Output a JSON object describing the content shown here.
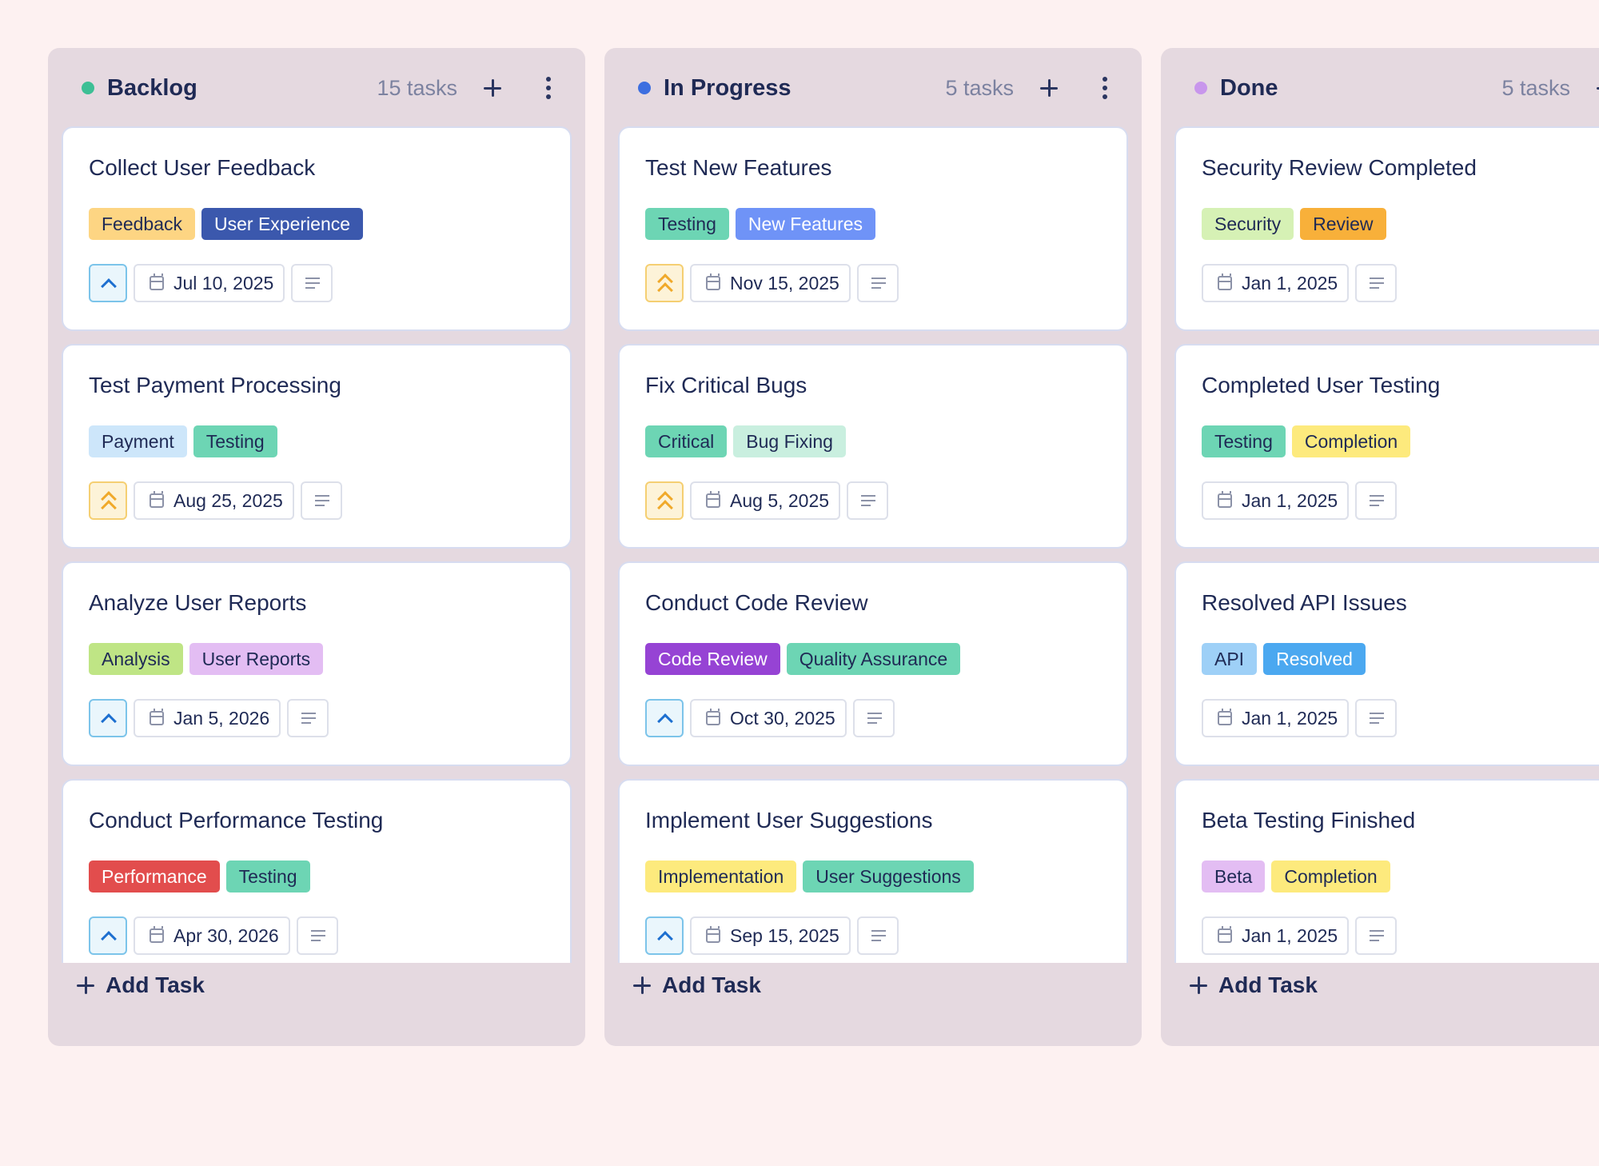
{
  "columns": [
    {
      "name": "Backlog",
      "count": "15 tasks",
      "dot_color": "#3dbf95",
      "add_task_label": "Add Task",
      "cards": [
        {
          "title": "Collect User Feedback",
          "priority": "normal",
          "tags": [
            {
              "label": "Feedback",
              "bg": "#fdd583",
              "fg": "#1f2a55"
            },
            {
              "label": "User Experience",
              "bg": "#3b58ad",
              "fg": "#ffffff"
            }
          ],
          "date": "Jul 10, 2025"
        },
        {
          "title": "Test Payment Processing",
          "priority": "high",
          "tags": [
            {
              "label": "Payment",
              "bg": "#cde6fa",
              "fg": "#1f2a55"
            },
            {
              "label": "Testing",
              "bg": "#6dd5b4",
              "fg": "#1f2a55"
            }
          ],
          "date": "Aug 25, 2025"
        },
        {
          "title": "Analyze User Reports",
          "priority": "normal",
          "tags": [
            {
              "label": "Analysis",
              "bg": "#bfe585",
              "fg": "#1f2a55"
            },
            {
              "label": "User Reports",
              "bg": "#e3bdf3",
              "fg": "#1f2a55"
            }
          ],
          "date": "Jan 5, 2026"
        },
        {
          "title": "Conduct Performance Testing",
          "priority": "normal",
          "tags": [
            {
              "label": "Performance",
              "bg": "#e24d4d",
              "fg": "#ffffff"
            },
            {
              "label": "Testing",
              "bg": "#6dd5b4",
              "fg": "#1f2a55"
            }
          ],
          "date": "Apr 30, 2026"
        }
      ]
    },
    {
      "name": "In Progress",
      "count": "5 tasks",
      "dot_color": "#3d6fe0",
      "add_task_label": "Add Task",
      "cards": [
        {
          "title": "Test New Features",
          "priority": "high",
          "tags": [
            {
              "label": "Testing",
              "bg": "#6dd5b4",
              "fg": "#1f2a55"
            },
            {
              "label": "New Features",
              "bg": "#6f93f7",
              "fg": "#ffffff"
            }
          ],
          "date": "Nov 15, 2025"
        },
        {
          "title": "Fix Critical Bugs",
          "priority": "high",
          "tags": [
            {
              "label": "Critical",
              "bg": "#6dd5b4",
              "fg": "#1f2a55"
            },
            {
              "label": "Bug Fixing",
              "bg": "#c9efdf",
              "fg": "#1f2a55"
            }
          ],
          "date": "Aug 5, 2025"
        },
        {
          "title": "Conduct Code Review",
          "priority": "normal",
          "tags": [
            {
              "label": "Code Review",
              "bg": "#9643d4",
              "fg": "#ffffff"
            },
            {
              "label": "Quality Assurance",
              "bg": "#6dd5b4",
              "fg": "#1f2a55"
            }
          ],
          "date": "Oct 30, 2025"
        },
        {
          "title": "Implement User Suggestions",
          "priority": "normal",
          "tags": [
            {
              "label": "Implementation",
              "bg": "#fdea7d",
              "fg": "#1f2a55"
            },
            {
              "label": "User Suggestions",
              "bg": "#6dd5b4",
              "fg": "#1f2a55"
            }
          ],
          "date": "Sep 15, 2025"
        }
      ]
    },
    {
      "name": "Done",
      "count": "5 tasks",
      "dot_color": "#c896ec",
      "add_task_label": "Add Task",
      "cards": [
        {
          "title": "Security Review Completed",
          "priority": "none",
          "tags": [
            {
              "label": "Security",
              "bg": "#d6f1b5",
              "fg": "#1f2a55"
            },
            {
              "label": "Review",
              "bg": "#f8b03a",
              "fg": "#1f2a55"
            }
          ],
          "date": "Jan 1, 2025"
        },
        {
          "title": "Completed User Testing",
          "priority": "none",
          "tags": [
            {
              "label": "Testing",
              "bg": "#6dd5b4",
              "fg": "#1f2a55"
            },
            {
              "label": "Completion",
              "bg": "#fdea7d",
              "fg": "#1f2a55"
            }
          ],
          "date": "Jan 1, 2025"
        },
        {
          "title": "Resolved API Issues",
          "priority": "none",
          "tags": [
            {
              "label": "API",
              "bg": "#9ed0f7",
              "fg": "#1f2a55"
            },
            {
              "label": "Resolved",
              "bg": "#4ba8f0",
              "fg": "#ffffff"
            }
          ],
          "date": "Jan 1, 2025"
        },
        {
          "title": "Beta Testing Finished",
          "priority": "none",
          "tags": [
            {
              "label": "Beta",
              "bg": "#e3bdf3",
              "fg": "#1f2a55"
            },
            {
              "label": "Completion",
              "bg": "#fdea7d",
              "fg": "#1f2a55"
            }
          ],
          "date": "Jan 1, 2025"
        }
      ]
    }
  ],
  "icons": {
    "header_add": "plus-icon",
    "header_more": "more-vertical-icon",
    "priority_normal": "chevron-up-icon",
    "priority_high": "double-chevron-up-icon",
    "date": "calendar-icon",
    "description": "text-lines-icon",
    "add_task": "plus-icon"
  }
}
